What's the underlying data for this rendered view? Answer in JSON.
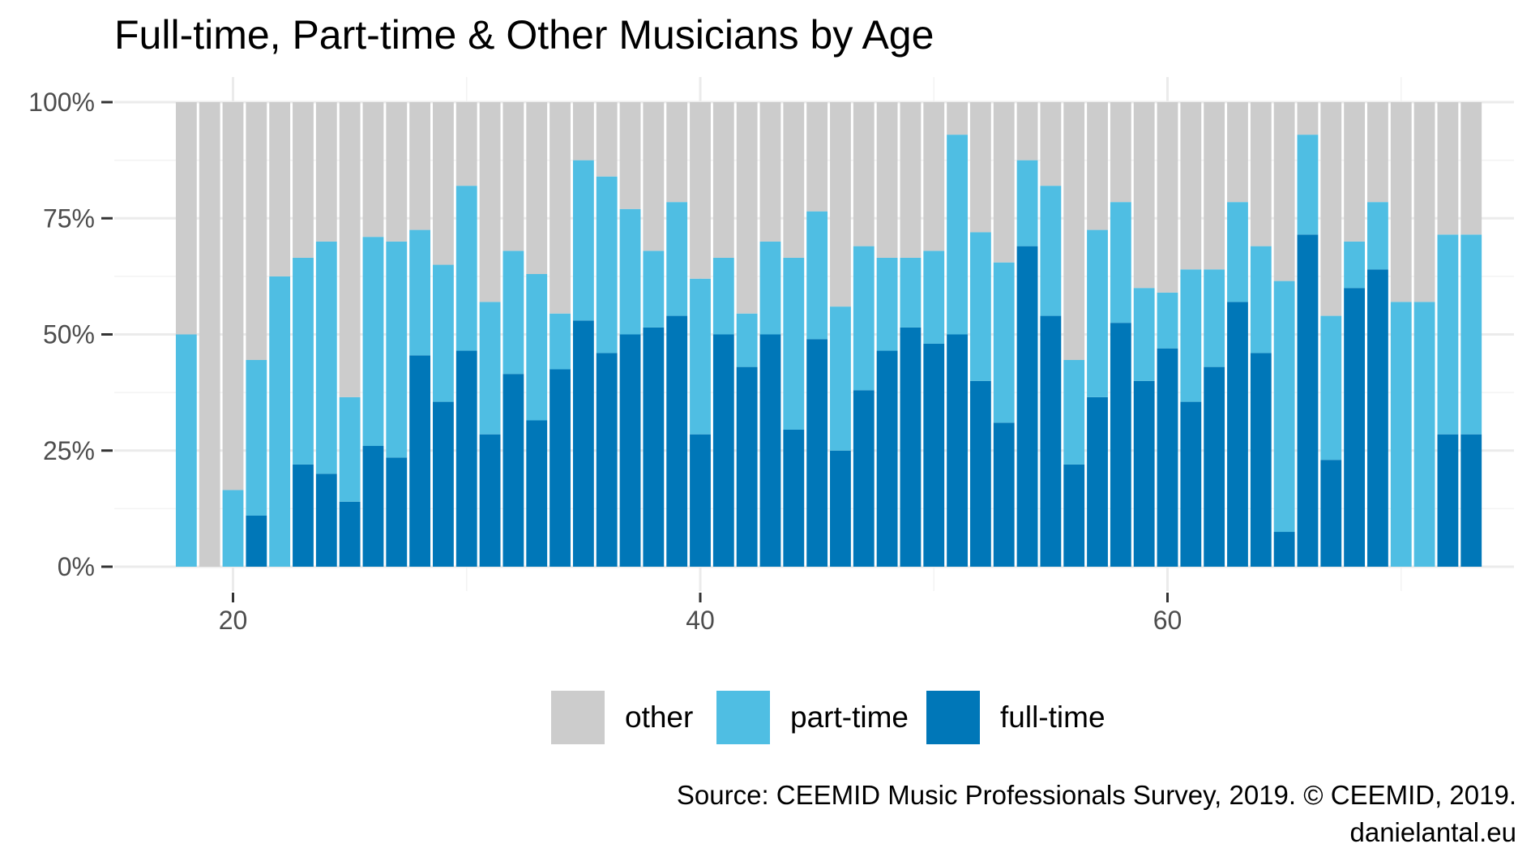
{
  "chart_data": {
    "type": "bar",
    "stacked": true,
    "title": "Full-time, Part-time & Other Musicians by Age",
    "xlabel": "",
    "ylabel": "",
    "xlim": [
      17,
      74
    ],
    "ylim": [
      0,
      1
    ],
    "x_ticks": [
      20,
      40,
      60
    ],
    "x_tick_labels": [
      "20",
      "40",
      "60"
    ],
    "y_ticks": [
      0,
      0.25,
      0.5,
      0.75,
      1.0
    ],
    "y_tick_labels": [
      "0%",
      "25%",
      "50%",
      "75%",
      "100%"
    ],
    "grid": true,
    "legend_position": "bottom",
    "x": [
      18,
      19,
      20,
      21,
      22,
      23,
      24,
      25,
      26,
      27,
      28,
      29,
      30,
      31,
      32,
      33,
      34,
      35,
      36,
      37,
      38,
      39,
      40,
      41,
      42,
      43,
      44,
      45,
      46,
      47,
      48,
      49,
      50,
      51,
      52,
      53,
      54,
      55,
      56,
      57,
      58,
      59,
      60,
      61,
      62,
      63,
      64,
      65,
      66,
      67,
      68,
      69,
      70,
      71,
      72,
      73
    ],
    "series": [
      {
        "name": "full-time",
        "color": "#0077b8",
        "values": [
          0,
          0,
          0,
          0.11,
          0,
          0.22,
          0.2,
          0.14,
          0.26,
          0.235,
          0.455,
          0.355,
          0.465,
          0.285,
          0.415,
          0.315,
          0.425,
          0.53,
          0.46,
          0.5,
          0.515,
          0.54,
          0.285,
          0.5,
          0.43,
          0.5,
          0.295,
          0.49,
          0.25,
          0.38,
          0.465,
          0.515,
          0.48,
          0.5,
          0.4,
          0.31,
          0.69,
          0.54,
          0.22,
          0.365,
          0.525,
          0.4,
          0.47,
          0.355,
          0.43,
          0.57,
          0.46,
          0.075,
          0.715,
          0.23,
          0.6,
          0.64,
          0,
          0,
          0.285,
          0.285
        ]
      },
      {
        "name": "part-time",
        "color": "#4fbee3",
        "values": [
          0.5,
          0,
          0.165,
          0.335,
          0.625,
          0.445,
          0.5,
          0.225,
          0.45,
          0.465,
          0.27,
          0.295,
          0.355,
          0.285,
          0.265,
          0.315,
          0.12,
          0.345,
          0.38,
          0.27,
          0.165,
          0.245,
          0.335,
          0.165,
          0.115,
          0.2,
          0.37,
          0.275,
          0.31,
          0.31,
          0.2,
          0.15,
          0.2,
          0.43,
          0.32,
          0.345,
          0.185,
          0.28,
          0.225,
          0.36,
          0.26,
          0.2,
          0.12,
          0.285,
          0.21,
          0.215,
          0.23,
          0.54,
          0.215,
          0.31,
          0.1,
          0.145,
          0.57,
          0.57,
          0.43,
          0.43
        ]
      },
      {
        "name": "other",
        "color": "#cccccc",
        "values": [
          0.5,
          1.0,
          0.835,
          0.555,
          0.375,
          0.335,
          0.3,
          0.635,
          0.29,
          0.3,
          0.275,
          0.35,
          0.18,
          0.43,
          0.32,
          0.37,
          0.455,
          0.125,
          0.16,
          0.23,
          0.32,
          0.215,
          0.38,
          0.335,
          0.455,
          0.3,
          0.335,
          0.235,
          0.44,
          0.31,
          0.335,
          0.335,
          0.32,
          0.07,
          0.28,
          0.345,
          0.125,
          0.18,
          0.555,
          0.275,
          0.215,
          0.4,
          0.41,
          0.36,
          0.36,
          0.215,
          0.31,
          0.385,
          0.07,
          0.46,
          0.3,
          0.215,
          0.43,
          0.43,
          0.285,
          0.285
        ]
      }
    ],
    "legend": [
      {
        "label": "other",
        "color": "#cccccc"
      },
      {
        "label": "part-time",
        "color": "#4fbee3"
      },
      {
        "label": "full-time",
        "color": "#0077b8"
      }
    ]
  },
  "caption": {
    "line1": "Source: CEEMID Music Professionals Survey, 2019. © CEEMID, 2019.",
    "line2": "danielantal.eu"
  }
}
